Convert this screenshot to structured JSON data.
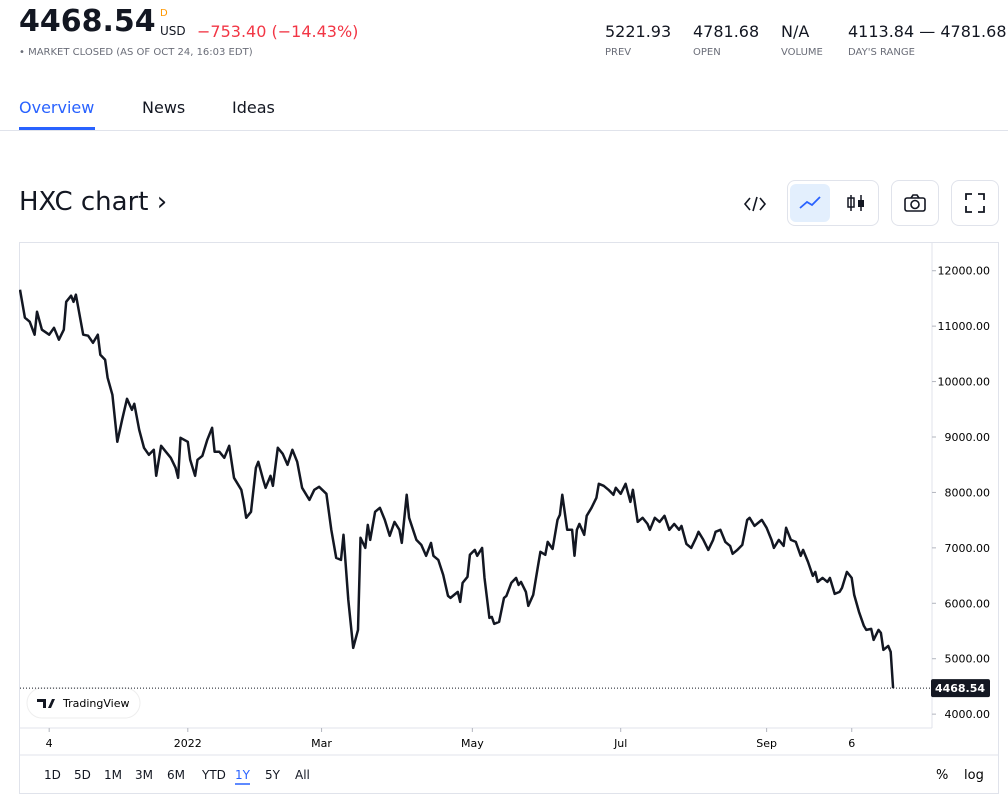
{
  "header": {
    "price": "4468.54",
    "badge": "D",
    "currency": "USD",
    "change": "−753.40",
    "change_percent": "(−14.43%)",
    "status": "• MARKET CLOSED (AS OF OCT 24, 16:03 EDT)",
    "stats": [
      {
        "value": "5221.93",
        "label": "PREV"
      },
      {
        "value": "4781.68",
        "label": "OPEN"
      },
      {
        "value": "N/A",
        "label": "VOLUME"
      },
      {
        "value": "4113.84 — 4781.68",
        "label": "DAY'S RANGE"
      }
    ]
  },
  "tabs": [
    "Overview",
    "News",
    "Ideas"
  ],
  "chart_title": "HXC chart ›",
  "watermark": "TradingView",
  "range_buttons": [
    "1D",
    "5D",
    "1M",
    "3M",
    "6M",
    "YTD",
    "1Y",
    "5Y",
    "All"
  ],
  "scale_buttons": [
    "%",
    "log"
  ],
  "chart_data": {
    "type": "line",
    "color": "#131722",
    "last_value": 4468.54,
    "x": [
      0,
      2,
      4,
      6,
      7,
      9,
      12,
      14,
      16,
      18,
      19,
      21,
      22,
      23,
      26,
      28,
      30,
      32,
      33,
      35,
      36,
      38,
      40,
      42,
      44,
      46,
      47,
      49,
      51,
      53,
      55,
      56,
      58,
      60,
      62,
      64,
      65,
      66,
      69,
      70,
      72,
      73,
      75,
      77,
      79,
      80,
      82,
      84,
      86,
      88,
      91,
      92,
      93,
      95,
      97,
      98,
      100,
      101,
      103,
      104,
      106,
      108,
      110,
      112,
      114,
      116,
      119,
      121,
      123,
      126,
      128,
      130,
      132,
      133,
      135,
      137,
      139,
      140,
      142,
      143,
      144,
      146,
      148,
      150,
      152,
      154,
      156,
      157,
      159,
      160,
      163,
      165,
      167,
      169,
      170,
      172,
      174,
      176,
      177,
      180,
      181,
      182,
      184,
      185,
      187,
      188,
      190,
      191,
      193,
      194,
      195,
      197,
      199,
      200,
      202,
      204,
      205,
      206,
      208,
      209,
      211,
      213,
      214,
      216,
      217,
      219,
      221,
      222,
      223,
      225,
      227,
      228,
      229,
      230,
      232,
      233,
      235,
      237,
      238,
      240,
      242,
      244,
      245,
      247,
      249,
      251,
      252,
      254,
      256,
      258,
      259,
      261,
      263,
      265,
      267,
      269,
      271,
      272,
      274,
      276,
      278,
      279,
      281,
      283,
      285,
      286,
      288,
      290,
      292,
      293,
      295,
      297,
      299,
      300,
      302,
      305,
      307,
      309,
      310,
      312,
      314,
      315,
      317,
      319,
      321,
      322,
      324,
      326,
      327,
      328,
      330,
      332,
      333,
      335,
      337,
      338,
      340,
      342,
      343,
      345,
      347,
      348,
      350,
      351,
      353,
      354,
      355,
      357,
      358,
      359
    ],
    "values": [
      11657,
      11152,
      11080,
      10845,
      11260,
      10935,
      10845,
      10970,
      10755,
      10935,
      11440,
      11549,
      11440,
      11567,
      10845,
      10827,
      10700,
      10845,
      10484,
      10394,
      10069,
      9762,
      8913,
      9310,
      9690,
      9491,
      9599,
      9130,
      8805,
      8679,
      8769,
      8300,
      8841,
      8733,
      8625,
      8444,
      8264,
      8986,
      8913,
      8588,
      8300,
      8588,
      8661,
      8949,
      9166,
      8733,
      8733,
      8625,
      8841,
      8264,
      8047,
      7830,
      7542,
      7650,
      8444,
      8552,
      8227,
      8083,
      8300,
      8119,
      8805,
      8697,
      8498,
      8769,
      8552,
      8083,
      7866,
      8047,
      8101,
      7975,
      7325,
      6819,
      6783,
      7235,
      6061,
      5195,
      5520,
      7181,
      7000,
      7415,
      7144,
      7650,
      7722,
      7505,
      7217,
      7469,
      7325,
      7090,
      7957,
      7542,
      7144,
      7054,
      6856,
      7090,
      6856,
      6783,
      6513,
      6134,
      6097,
      6206,
      6025,
      6368,
      6477,
      6874,
      6964,
      6856,
      7000,
      6458,
      5736,
      5755,
      5628,
      5664,
      6097,
      6134,
      6368,
      6458,
      6332,
      6386,
      6206,
      5953,
      6151,
      6675,
      6928,
      6874,
      7108,
      6982,
      7505,
      7596,
      7957,
      7325,
      7325,
      6856,
      7325,
      7433,
      7235,
      7578,
      7722,
      7903,
      8155,
      8119,
      8047,
      7957,
      8083,
      7975,
      8155,
      7830,
      8047,
      7469,
      7542,
      7433,
      7325,
      7542,
      7469,
      7578,
      7325,
      7433,
      7325,
      7397,
      7072,
      7000,
      7181,
      7289,
      7144,
      6964,
      7144,
      7289,
      7325,
      7108,
      7036,
      6892,
      6964,
      7054,
      7505,
      7542,
      7397,
      7505,
      7361,
      7144,
      7000,
      7144,
      7036,
      7361,
      7144,
      7108,
      6856,
      6964,
      6747,
      6494,
      6567,
      6386,
      6458,
      6386,
      6458,
      6170,
      6206,
      6278,
      6567,
      6458,
      6151,
      5845,
      5592,
      5520,
      5538,
      5339,
      5520,
      5466,
      5159,
      5231,
      5123,
      4468.54
    ],
    "xlim": [
      0,
      375
    ],
    "xticks": [
      {
        "value": 12,
        "label": "4"
      },
      {
        "value": 69,
        "label": "2022"
      },
      {
        "value": 124,
        "label": "Mar"
      },
      {
        "value": 186,
        "label": "May"
      },
      {
        "value": 247,
        "label": "Jul"
      },
      {
        "value": 307,
        "label": "Sep"
      },
      {
        "value": 342,
        "label": "6"
      }
    ],
    "ylim": [
      3750,
      12500
    ],
    "yticks": [
      {
        "value": 4000,
        "label": "4000.00"
      },
      {
        "value": 5000,
        "label": "5000.00"
      },
      {
        "value": 6000,
        "label": "6000.00"
      },
      {
        "value": 7000,
        "label": "7000.00"
      },
      {
        "value": 8000,
        "label": "8000.00"
      },
      {
        "value": 9000,
        "label": "9000.00"
      },
      {
        "value": 10000,
        "label": "10000.00"
      },
      {
        "value": 11000,
        "label": "11000.00"
      },
      {
        "value": 12000,
        "label": "12000.00"
      }
    ]
  }
}
